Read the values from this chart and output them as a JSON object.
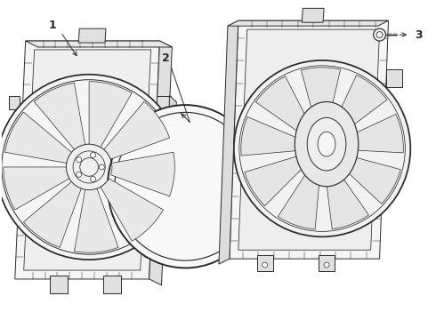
{
  "bg_color": "#ffffff",
  "line_color": "#2a2a2a",
  "lw": 0.7,
  "label1": "1",
  "label2": "2",
  "label3": "3",
  "fig_w": 4.9,
  "fig_h": 3.6,
  "dpi": 100
}
